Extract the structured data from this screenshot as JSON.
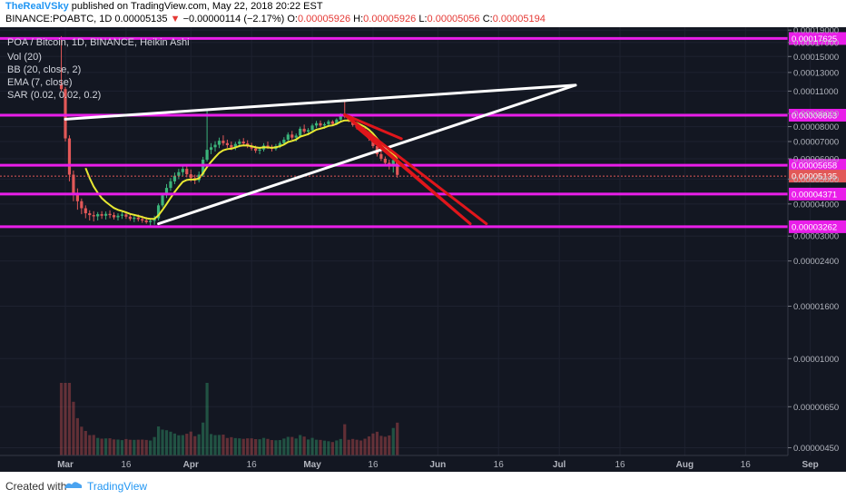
{
  "header": {
    "author": "TheRealVSky",
    "published": "published on TradingView.com, May 22, 2018 20:22 EST",
    "symbol": "BINANCE:POABTC, 1D",
    "last": "0.00005135",
    "arrow": "▼",
    "change": "−0.00000114 (−2.17%)",
    "o_label": "O:",
    "o_value": "0.00005926",
    "h_label": "H:",
    "h_value": "0.00005926",
    "l_label": "L:",
    "l_value": "0.00005056",
    "c_label": "C:",
    "c_value": "0.00005194"
  },
  "legend": {
    "title": "POA / Bitcoin, 1D, BINANCE, Heikin Ashi",
    "vol": "Vol (20)",
    "bb": "BB (20, close, 2)",
    "ema": "EMA (7, close)",
    "sar": "SAR (0.02, 0.02, 0.2)"
  },
  "footer": {
    "created_with": "Created with",
    "brand": "TradingView"
  },
  "colors": {
    "background": "#131722",
    "magenta": "#e91ee9",
    "trendline": "#ffffff",
    "red_line": "#e0161b",
    "candle_up": "#3bb37a",
    "candle_down": "#e25858",
    "ema": "#e8e832"
  },
  "chart_data": {
    "type": "candlestick",
    "y_ticks": [
      "0.00019000",
      "0.00017000",
      "0.00015000",
      "0.00013000",
      "0.00011000",
      "0.00009000",
      "0.00008000",
      "0.00007000",
      "0.00006000",
      "0.00005000",
      "0.00004000",
      "0.00003000",
      "0.00002400",
      "0.00001600",
      "0.00001000",
      "0.00000650",
      "0.00000450"
    ],
    "y_scale": "log",
    "ylim": [
      4.2e-06,
      0.000195
    ],
    "x_ticks": [
      "Mar",
      "16",
      "Apr",
      "16",
      "May",
      "16",
      "Jun",
      "16",
      "Jul",
      "16",
      "Aug",
      "16",
      "Sep"
    ],
    "x_tick_dates": [
      "2018-03-01",
      "2018-03-16",
      "2018-04-01",
      "2018-04-16",
      "2018-05-01",
      "2018-05-16",
      "2018-06-01",
      "2018-06-16",
      "2018-07-01",
      "2018-07-16",
      "2018-08-01",
      "2018-08-16",
      "2018-09-01"
    ],
    "horizontal_levels": [
      {
        "label": "0.00017625",
        "value": 0.00017625
      },
      {
        "label": "0.00008863",
        "value": 8.863e-05
      },
      {
        "label": "0.00005658",
        "value": 5.658e-05
      },
      {
        "label": "0.00004371",
        "value": 4.371e-05
      },
      {
        "label": "0.00003262",
        "value": 3.262e-05
      }
    ],
    "current_price": {
      "label": "0.00005135",
      "value": 5.135e-05
    },
    "trendlines": [
      {
        "color": "white",
        "from": [
          "2018-03-01",
          8.55e-05
        ],
        "to": [
          "2018-07-05",
          0.000116
        ]
      },
      {
        "color": "white",
        "from": [
          "2018-03-24",
          3.35e-05
        ],
        "to": [
          "2018-07-05",
          0.000116
        ]
      },
      {
        "color": "red",
        "from": [
          "2018-05-09",
          8.9e-05
        ],
        "to": [
          "2018-05-23",
          7.18e-05
        ]
      },
      {
        "color": "red",
        "from": [
          "2018-05-09",
          8.9e-05
        ],
        "to": [
          "2018-06-13",
          3.35e-05
        ]
      },
      {
        "color": "red",
        "from": [
          "2018-05-09",
          8.9e-05
        ],
        "to": [
          "2018-06-09",
          3.35e-05
        ]
      },
      {
        "color": "red",
        "from": [
          "2018-05-12",
          7.95e-05
        ],
        "to": [
          "2018-06-09",
          3.35e-05
        ]
      }
    ],
    "candles": [
      {
        "date": "2018-02-28",
        "o": 0.000117,
        "h": 0.00018,
        "l": 0.00011,
        "c": 0.000112
      },
      {
        "date": "2018-03-01",
        "o": 0.000112,
        "h": 0.000114,
        "l": 7e-05,
        "c": 7.2e-05
      },
      {
        "date": "2018-03-02",
        "o": 7.2e-05,
        "h": 7.4e-05,
        "l": 4.9e-05,
        "c": 5.2e-05
      },
      {
        "date": "2018-03-03",
        "o": 5.2e-05,
        "h": 5.4e-05,
        "l": 4.1e-05,
        "c": 4.4e-05
      },
      {
        "date": "2018-03-04",
        "o": 4.4e-05,
        "h": 4.6e-05,
        "l": 3.8e-05,
        "c": 4.1e-05
      },
      {
        "date": "2018-03-05",
        "o": 4.1e-05,
        "h": 4.2e-05,
        "l": 3.65e-05,
        "c": 3.85e-05
      },
      {
        "date": "2018-03-06",
        "o": 3.85e-05,
        "h": 3.95e-05,
        "l": 3.52e-05,
        "c": 3.68e-05
      },
      {
        "date": "2018-03-07",
        "o": 3.68e-05,
        "h": 3.78e-05,
        "l": 3.45e-05,
        "c": 3.62e-05
      },
      {
        "date": "2018-03-08",
        "o": 3.62e-05,
        "h": 3.75e-05,
        "l": 3.42e-05,
        "c": 3.58e-05
      },
      {
        "date": "2018-03-09",
        "o": 3.58e-05,
        "h": 3.72e-05,
        "l": 3.45e-05,
        "c": 3.65e-05
      },
      {
        "date": "2018-03-10",
        "o": 3.65e-05,
        "h": 3.75e-05,
        "l": 3.5e-05,
        "c": 3.6e-05
      },
      {
        "date": "2018-03-11",
        "o": 3.6e-05,
        "h": 3.74e-05,
        "l": 3.48e-05,
        "c": 3.66e-05
      },
      {
        "date": "2018-03-12",
        "o": 3.66e-05,
        "h": 3.78e-05,
        "l": 3.52e-05,
        "c": 3.62e-05
      },
      {
        "date": "2018-03-13",
        "o": 3.62e-05,
        "h": 3.71e-05,
        "l": 3.48e-05,
        "c": 3.55e-05
      },
      {
        "date": "2018-03-14",
        "o": 3.55e-05,
        "h": 3.68e-05,
        "l": 3.45e-05,
        "c": 3.6e-05
      },
      {
        "date": "2018-03-15",
        "o": 3.6e-05,
        "h": 3.72e-05,
        "l": 3.5e-05,
        "c": 3.64e-05
      },
      {
        "date": "2018-03-16",
        "o": 3.64e-05,
        "h": 3.74e-05,
        "l": 3.5e-05,
        "c": 3.57e-05
      },
      {
        "date": "2018-03-17",
        "o": 3.57e-05,
        "h": 3.66e-05,
        "l": 3.44e-05,
        "c": 3.5e-05
      },
      {
        "date": "2018-03-18",
        "o": 3.5e-05,
        "h": 3.62e-05,
        "l": 3.4e-05,
        "c": 3.54e-05
      },
      {
        "date": "2018-03-19",
        "o": 3.54e-05,
        "h": 3.64e-05,
        "l": 3.42e-05,
        "c": 3.49e-05
      },
      {
        "date": "2018-03-20",
        "o": 3.49e-05,
        "h": 3.6e-05,
        "l": 3.38e-05,
        "c": 3.45e-05
      },
      {
        "date": "2018-03-21",
        "o": 3.45e-05,
        "h": 3.56e-05,
        "l": 3.35e-05,
        "c": 3.4e-05
      },
      {
        "date": "2018-03-22",
        "o": 3.4e-05,
        "h": 3.5e-05,
        "l": 3.3e-05,
        "c": 3.44e-05
      },
      {
        "date": "2018-03-23",
        "o": 3.44e-05,
        "h": 3.6e-05,
        "l": 3.32e-05,
        "c": 3.52e-05
      },
      {
        "date": "2018-03-24",
        "o": 3.52e-05,
        "h": 4.02e-05,
        "l": 3.45e-05,
        "c": 3.95e-05
      },
      {
        "date": "2018-03-25",
        "o": 3.95e-05,
        "h": 4.42e-05,
        "l": 3.88e-05,
        "c": 4.32e-05
      },
      {
        "date": "2018-03-26",
        "o": 4.32e-05,
        "h": 4.78e-05,
        "l": 4.22e-05,
        "c": 4.62e-05
      },
      {
        "date": "2018-03-27",
        "o": 4.62e-05,
        "h": 5.05e-05,
        "l": 4.5e-05,
        "c": 4.9e-05
      },
      {
        "date": "2018-03-28",
        "o": 4.9e-05,
        "h": 5.3e-05,
        "l": 4.78e-05,
        "c": 5.15e-05
      },
      {
        "date": "2018-03-29",
        "o": 5.15e-05,
        "h": 5.48e-05,
        "l": 5e-05,
        "c": 5.32e-05
      },
      {
        "date": "2018-03-30",
        "o": 5.32e-05,
        "h": 5.65e-05,
        "l": 5.15e-05,
        "c": 5.48e-05
      },
      {
        "date": "2018-03-31",
        "o": 5.48e-05,
        "h": 5.6e-05,
        "l": 5.08e-05,
        "c": 5.22e-05
      },
      {
        "date": "2018-04-01",
        "o": 5.22e-05,
        "h": 5.45e-05,
        "l": 4.88e-05,
        "c": 5.05e-05
      },
      {
        "date": "2018-04-02",
        "o": 5.05e-05,
        "h": 5.2e-05,
        "l": 4.78e-05,
        "c": 4.95e-05
      },
      {
        "date": "2018-04-03",
        "o": 4.95e-05,
        "h": 5.35e-05,
        "l": 4.85e-05,
        "c": 5.2e-05
      },
      {
        "date": "2018-04-04",
        "o": 5.2e-05,
        "h": 6.1e-05,
        "l": 5.1e-05,
        "c": 5.95e-05
      },
      {
        "date": "2018-04-05",
        "o": 5.95e-05,
        "h": 9.4e-05,
        "l": 5.85e-05,
        "c": 6.5e-05
      },
      {
        "date": "2018-04-06",
        "o": 6.5e-05,
        "h": 6.9e-05,
        "l": 6.25e-05,
        "c": 6.65e-05
      },
      {
        "date": "2018-04-07",
        "o": 6.65e-05,
        "h": 7.02e-05,
        "l": 6.4e-05,
        "c": 6.8e-05
      },
      {
        "date": "2018-04-08",
        "o": 6.8e-05,
        "h": 7.25e-05,
        "l": 6.6e-05,
        "c": 7.05e-05
      },
      {
        "date": "2018-04-09",
        "o": 7.05e-05,
        "h": 7.4e-05,
        "l": 6.75e-05,
        "c": 6.9e-05
      },
      {
        "date": "2018-04-10",
        "o": 6.9e-05,
        "h": 7.12e-05,
        "l": 6.62e-05,
        "c": 6.78e-05
      },
      {
        "date": "2018-04-11",
        "o": 6.78e-05,
        "h": 7e-05,
        "l": 6.48e-05,
        "c": 6.62e-05
      },
      {
        "date": "2018-04-12",
        "o": 6.62e-05,
        "h": 6.98e-05,
        "l": 6.48e-05,
        "c": 6.85e-05
      },
      {
        "date": "2018-04-13",
        "o": 6.85e-05,
        "h": 7.15e-05,
        "l": 6.65e-05,
        "c": 7e-05
      },
      {
        "date": "2018-04-14",
        "o": 7e-05,
        "h": 7.22e-05,
        "l": 6.75e-05,
        "c": 6.88e-05
      },
      {
        "date": "2018-04-15",
        "o": 6.88e-05,
        "h": 7.08e-05,
        "l": 6.6e-05,
        "c": 6.72e-05
      },
      {
        "date": "2018-04-16",
        "o": 6.72e-05,
        "h": 6.92e-05,
        "l": 6.45e-05,
        "c": 6.58e-05
      },
      {
        "date": "2018-04-17",
        "o": 6.58e-05,
        "h": 6.75e-05,
        "l": 6.32e-05,
        "c": 6.45e-05
      },
      {
        "date": "2018-04-18",
        "o": 6.45e-05,
        "h": 6.68e-05,
        "l": 6.25e-05,
        "c": 6.52e-05
      },
      {
        "date": "2018-04-19",
        "o": 6.52e-05,
        "h": 6.9e-05,
        "l": 6.4e-05,
        "c": 6.75e-05
      },
      {
        "date": "2018-04-20",
        "o": 6.75e-05,
        "h": 7e-05,
        "l": 6.55e-05,
        "c": 6.62e-05
      },
      {
        "date": "2018-04-21",
        "o": 6.62e-05,
        "h": 6.8e-05,
        "l": 6.4e-05,
        "c": 6.55e-05
      },
      {
        "date": "2018-04-22",
        "o": 6.55e-05,
        "h": 6.85e-05,
        "l": 6.45e-05,
        "c": 6.72e-05
      },
      {
        "date": "2018-04-23",
        "o": 6.72e-05,
        "h": 7.02e-05,
        "l": 6.6e-05,
        "c": 6.9e-05
      },
      {
        "date": "2018-04-24",
        "o": 6.9e-05,
        "h": 7.28e-05,
        "l": 6.78e-05,
        "c": 7.12e-05
      },
      {
        "date": "2018-04-25",
        "o": 7.12e-05,
        "h": 7.6e-05,
        "l": 7e-05,
        "c": 7.45e-05
      },
      {
        "date": "2018-04-26",
        "o": 7.45e-05,
        "h": 7.7e-05,
        "l": 7.12e-05,
        "c": 7.25e-05
      },
      {
        "date": "2018-04-27",
        "o": 7.25e-05,
        "h": 7.52e-05,
        "l": 7e-05,
        "c": 7.38e-05
      },
      {
        "date": "2018-04-28",
        "o": 7.38e-05,
        "h": 8e-05,
        "l": 7.28e-05,
        "c": 7.85e-05
      },
      {
        "date": "2018-04-29",
        "o": 7.85e-05,
        "h": 8.15e-05,
        "l": 7.52e-05,
        "c": 7.65e-05
      },
      {
        "date": "2018-04-30",
        "o": 7.65e-05,
        "h": 7.9e-05,
        "l": 7.4e-05,
        "c": 7.75e-05
      },
      {
        "date": "2018-05-01",
        "o": 7.75e-05,
        "h": 8.22e-05,
        "l": 7.62e-05,
        "c": 8.08e-05
      },
      {
        "date": "2018-05-02",
        "o": 8.08e-05,
        "h": 8.42e-05,
        "l": 7.9e-05,
        "c": 8.25e-05
      },
      {
        "date": "2018-05-03",
        "o": 8.25e-05,
        "h": 8.45e-05,
        "l": 7.95e-05,
        "c": 8.08e-05
      },
      {
        "date": "2018-05-04",
        "o": 8.08e-05,
        "h": 8.32e-05,
        "l": 7.85e-05,
        "c": 8.18e-05
      },
      {
        "date": "2018-05-05",
        "o": 8.18e-05,
        "h": 8.5e-05,
        "l": 8.05e-05,
        "c": 8.38e-05
      },
      {
        "date": "2018-05-06",
        "o": 8.38e-05,
        "h": 8.48e-05,
        "l": 8.08e-05,
        "c": 8.2e-05
      },
      {
        "date": "2018-05-07",
        "o": 8.2e-05,
        "h": 8.62e-05,
        "l": 8.12e-05,
        "c": 8.52e-05
      },
      {
        "date": "2018-05-08",
        "o": 8.52e-05,
        "h": 9.02e-05,
        "l": 8.42e-05,
        "c": 8.88e-05
      },
      {
        "date": "2018-05-09",
        "o": 8.88e-05,
        "h": 0.0001,
        "l": 8.62e-05,
        "c": 8.75e-05
      },
      {
        "date": "2018-05-10",
        "o": 8.75e-05,
        "h": 8.85e-05,
        "l": 8.32e-05,
        "c": 8.45e-05
      },
      {
        "date": "2018-05-11",
        "o": 8.45e-05,
        "h": 8.55e-05,
        "l": 8e-05,
        "c": 8.12e-05
      },
      {
        "date": "2018-05-12",
        "o": 8.12e-05,
        "h": 8.3e-05,
        "l": 7.8e-05,
        "c": 7.95e-05
      },
      {
        "date": "2018-05-13",
        "o": 7.95e-05,
        "h": 8.05e-05,
        "l": 7.6e-05,
        "c": 7.72e-05
      },
      {
        "date": "2018-05-14",
        "o": 7.72e-05,
        "h": 7.9e-05,
        "l": 7.38e-05,
        "c": 7.52e-05
      },
      {
        "date": "2018-05-15",
        "o": 7.52e-05,
        "h": 7.65e-05,
        "l": 7.05e-05,
        "c": 7.18e-05
      },
      {
        "date": "2018-05-16",
        "o": 7.18e-05,
        "h": 7.28e-05,
        "l": 6.6e-05,
        "c": 6.72e-05
      },
      {
        "date": "2018-05-17",
        "o": 6.72e-05,
        "h": 6.82e-05,
        "l": 6.12e-05,
        "c": 6.25e-05
      },
      {
        "date": "2018-05-18",
        "o": 6.25e-05,
        "h": 6.4e-05,
        "l": 5.88e-05,
        "c": 6e-05
      },
      {
        "date": "2018-05-19",
        "o": 6e-05,
        "h": 6.12e-05,
        "l": 5.65e-05,
        "c": 5.78e-05
      },
      {
        "date": "2018-05-20",
        "o": 5.78e-05,
        "h": 5.95e-05,
        "l": 5.45e-05,
        "c": 5.6e-05
      },
      {
        "date": "2018-05-21",
        "o": 5.6e-05,
        "h": 6.1e-05,
        "l": 5.3e-05,
        "c": 5.93e-05
      },
      {
        "date": "2018-05-22",
        "o": 5.93e-05,
        "h": 5.93e-05,
        "l": 5.06e-05,
        "c": 5.19e-05
      }
    ],
    "volume_note": "Volume histogram under the candles"
  }
}
